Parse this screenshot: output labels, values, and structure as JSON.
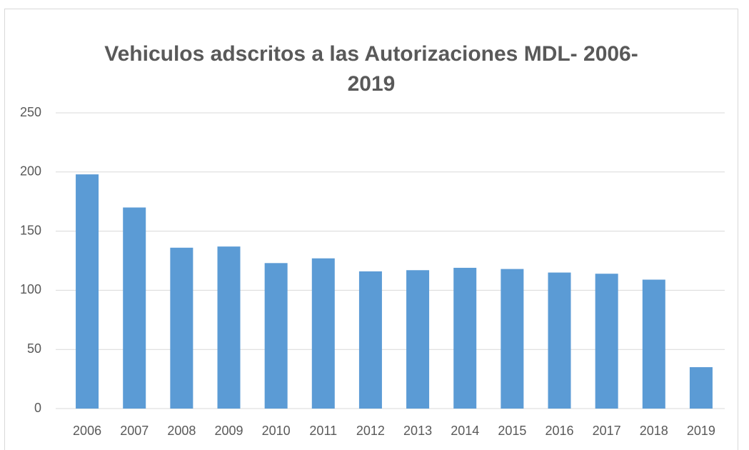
{
  "chart_data": {
    "type": "bar",
    "title": "Vehiculos adscritos a las Autorizaciones MDL- 2006-2019",
    "categories": [
      "2006",
      "2007",
      "2008",
      "2009",
      "2010",
      "2011",
      "2012",
      "2013",
      "2014",
      "2015",
      "2016",
      "2017",
      "2018",
      "2019"
    ],
    "values": [
      198,
      170,
      136,
      137,
      123,
      127,
      116,
      117,
      119,
      118,
      115,
      114,
      109,
      35
    ],
    "color": "#5b9bd5",
    "ylim": [
      0,
      250
    ],
    "yticks": [
      0,
      50,
      100,
      150,
      200,
      250
    ],
    "grid": true
  }
}
